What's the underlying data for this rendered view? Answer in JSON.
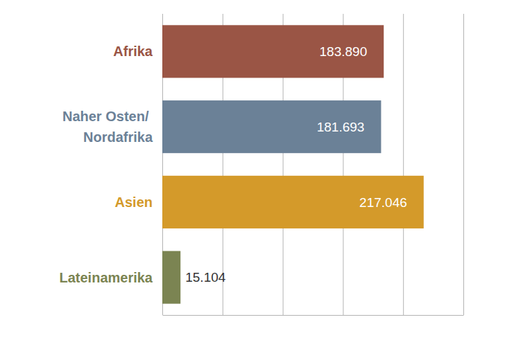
{
  "chart_data": {
    "type": "bar",
    "orientation": "horizontal",
    "categories": [
      "Afrika",
      "Naher Osten/ Nordafrika",
      "Asien",
      "Lateinamerika"
    ],
    "values": [
      183890,
      181693,
      217046,
      15104
    ],
    "value_labels": [
      "183.890",
      "181.693",
      "217.046",
      "15.104"
    ],
    "colors": [
      "#9a5545",
      "#6b8197",
      "#d49a2a",
      "#7b8452"
    ],
    "xlim": [
      0,
      250000
    ],
    "xticks": [
      0,
      50000,
      100000,
      150000,
      200000,
      250000
    ],
    "grid": true,
    "data_labels": true,
    "tick_labels": false
  }
}
